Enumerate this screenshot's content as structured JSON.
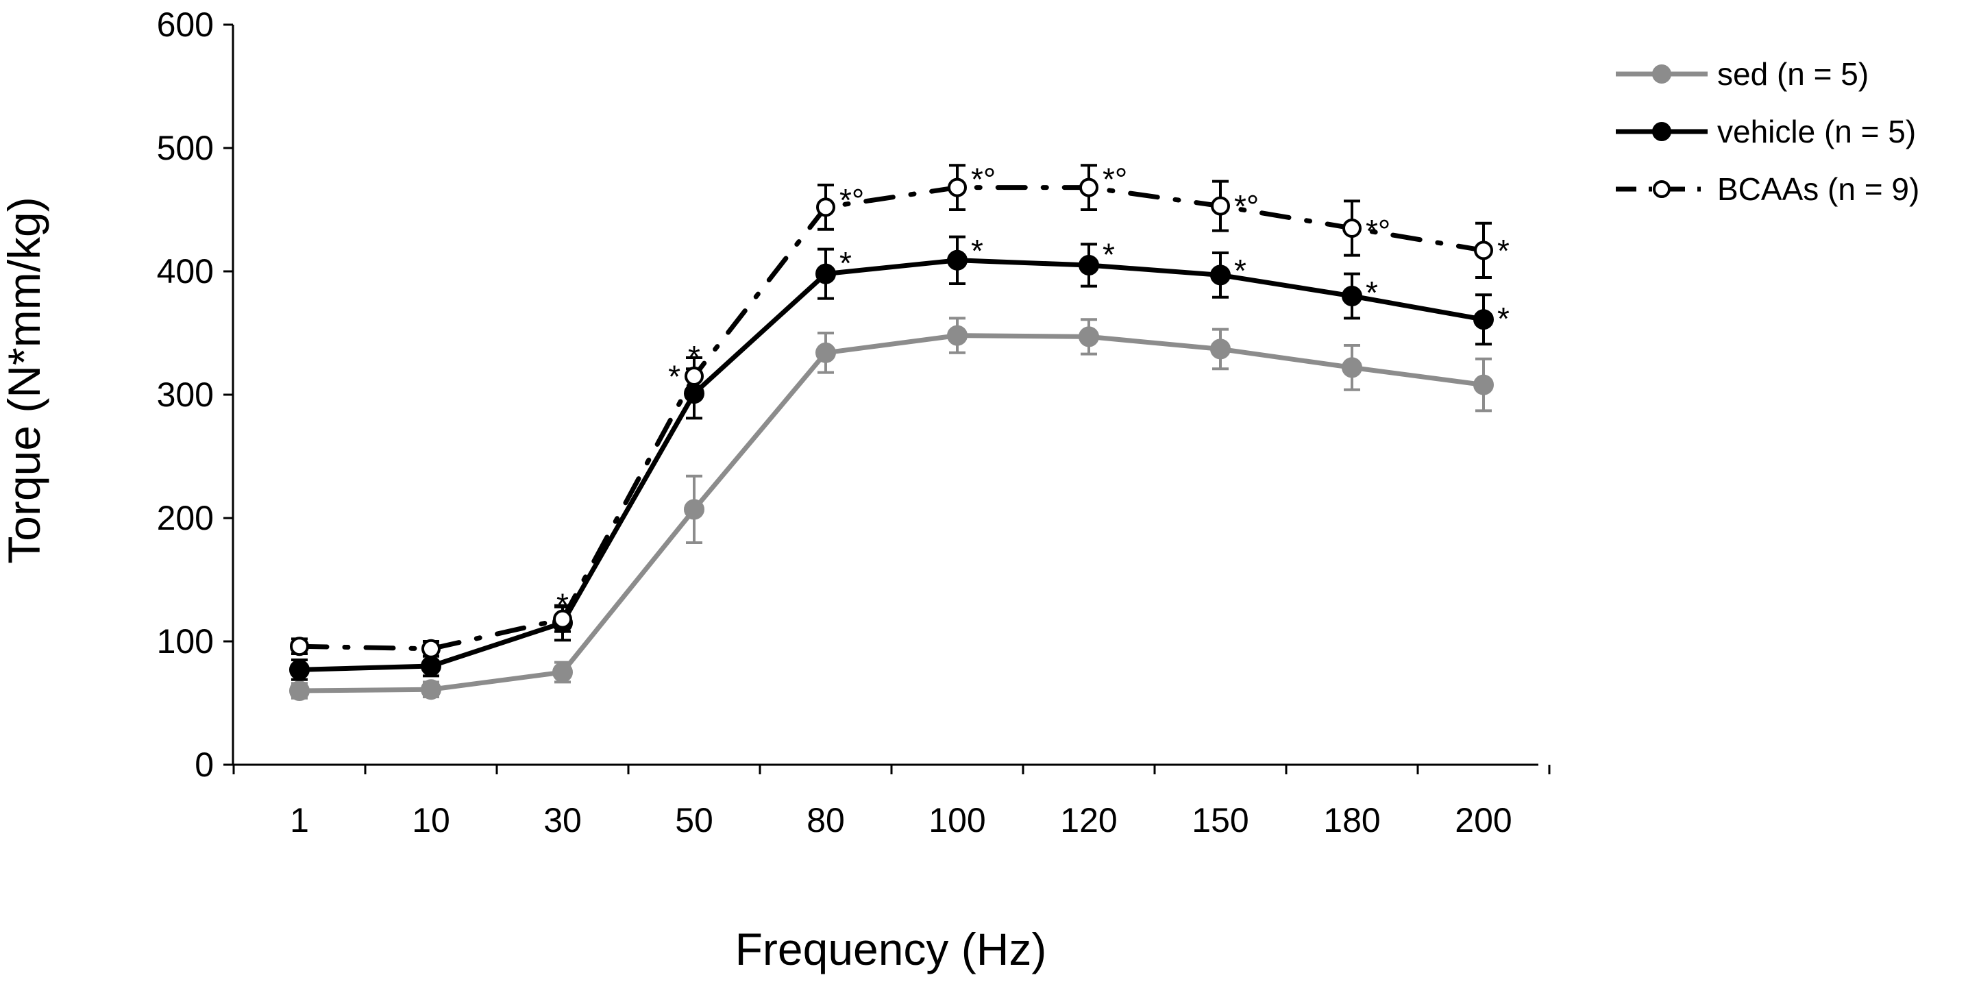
{
  "chart_data": {
    "type": "line",
    "title": "",
    "xlabel": "Frequency (Hz)",
    "ylabel": "Torque (N*mm/kg)",
    "ylim": [
      0,
      600
    ],
    "y_ticks": [
      0,
      100,
      200,
      300,
      400,
      500,
      600
    ],
    "y_tick_labels": [
      "0",
      "100",
      "200",
      "300",
      "400",
      "500",
      "600"
    ],
    "categories": [
      "1",
      "10",
      "30",
      "50",
      "80",
      "100",
      "120",
      "150",
      "180",
      "200"
    ],
    "legend_position": "top-right",
    "series": [
      {
        "name": "sed (n = 5)",
        "color": "#8c8c8c",
        "line_style": "solid",
        "marker": "filled-circle",
        "values": [
          60,
          61,
          75,
          207,
          334,
          348,
          347,
          337,
          322,
          308
        ],
        "errors": [
          6,
          6,
          8,
          27,
          16,
          14,
          14,
          16,
          18,
          21
        ]
      },
      {
        "name": "vehicle (n = 5)",
        "color": "#000000",
        "line_style": "solid",
        "marker": "filled-circle",
        "values": [
          77,
          80,
          115,
          301,
          398,
          409,
          405,
          397,
          380,
          361
        ],
        "errors": [
          8,
          8,
          14,
          20,
          20,
          19,
          17,
          18,
          18,
          20
        ]
      },
      {
        "name": "BCAAs (n = 9)",
        "color": "#000000",
        "line_style": "dash-dot",
        "marker": "open-circle",
        "values": [
          96,
          94,
          118,
          315,
          452,
          468,
          468,
          453,
          435,
          417
        ],
        "errors": [
          6,
          6,
          10,
          15,
          18,
          18,
          18,
          20,
          22,
          22
        ]
      }
    ],
    "annotations": [
      {
        "category_index": 2,
        "value": 133,
        "text": "*",
        "align": "center"
      },
      {
        "category_index": 3,
        "value": 318,
        "text": "*",
        "align": "left"
      },
      {
        "category_index": 3,
        "value": 334,
        "text": "*",
        "align": "center"
      },
      {
        "category_index": 4,
        "value": 410,
        "text": "*",
        "align": "right"
      },
      {
        "category_index": 4,
        "value": 461,
        "text": "*°",
        "align": "right"
      },
      {
        "category_index": 5,
        "value": 420,
        "text": "*",
        "align": "right"
      },
      {
        "category_index": 5,
        "value": 478,
        "text": "*°",
        "align": "right"
      },
      {
        "category_index": 6,
        "value": 417,
        "text": "*",
        "align": "right"
      },
      {
        "category_index": 6,
        "value": 478,
        "text": "*°",
        "align": "right"
      },
      {
        "category_index": 7,
        "value": 404,
        "text": "*",
        "align": "right"
      },
      {
        "category_index": 7,
        "value": 456,
        "text": "*°",
        "align": "right"
      },
      {
        "category_index": 8,
        "value": 386,
        "text": "*",
        "align": "right"
      },
      {
        "category_index": 8,
        "value": 436,
        "text": "*°",
        "align": "right"
      },
      {
        "category_index": 9,
        "value": 365,
        "text": "*",
        "align": "right"
      },
      {
        "category_index": 9,
        "value": 420,
        "text": "*",
        "align": "right"
      }
    ]
  }
}
